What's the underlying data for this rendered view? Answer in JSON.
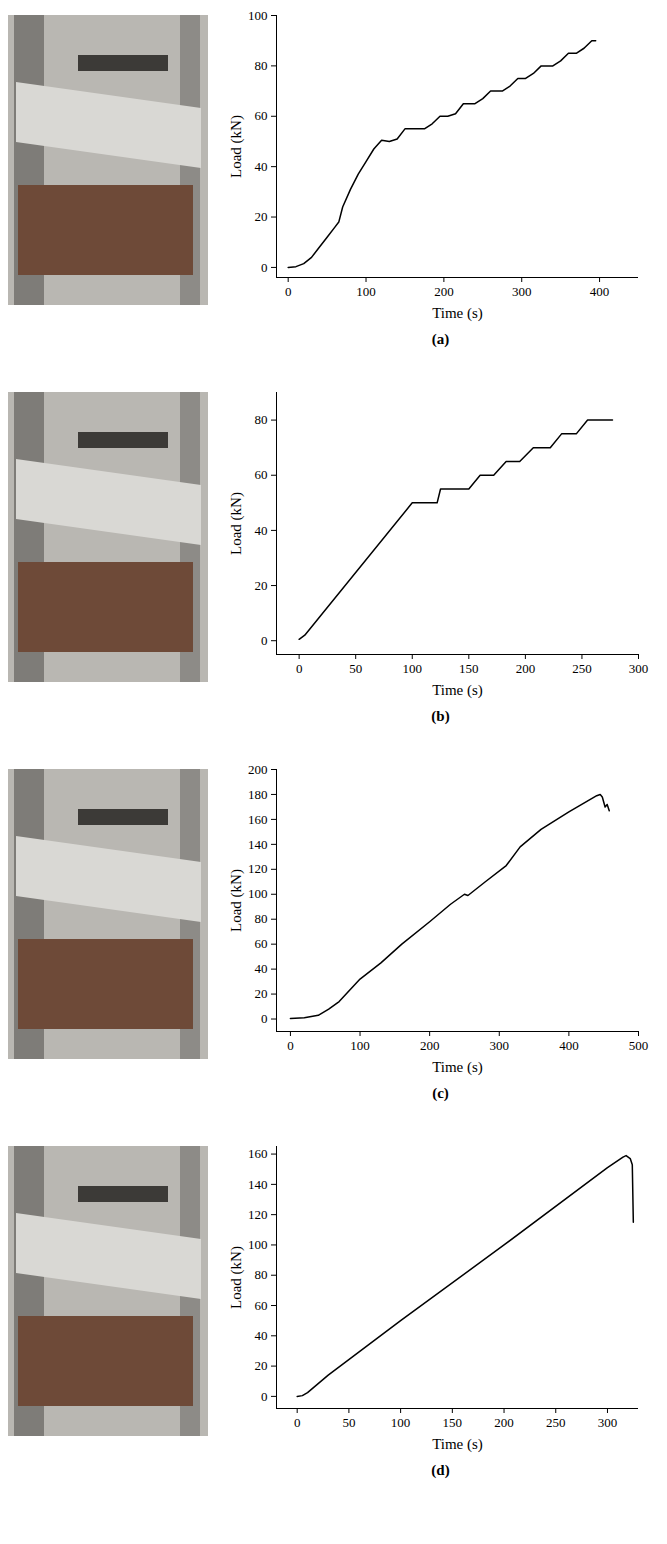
{
  "chart_data": [
    {
      "type": "line",
      "title": "(a)",
      "x_label": "Time (s)",
      "y_label": "Load (kN)",
      "color": "#000000",
      "xlim": [
        -15,
        450
      ],
      "xticks": [
        0,
        100,
        200,
        300,
        400
      ],
      "ylim": [
        -4,
        100
      ],
      "yticks": [
        0,
        20,
        40,
        60,
        80,
        100
      ],
      "x": [
        0,
        10,
        20,
        30,
        40,
        50,
        60,
        65,
        70,
        80,
        90,
        100,
        110,
        120,
        130,
        140,
        150,
        160,
        175,
        185,
        195,
        205,
        215,
        225,
        240,
        250,
        260,
        275,
        285,
        295,
        305,
        315,
        325,
        340,
        350,
        360,
        370,
        380,
        390,
        395
      ],
      "values": [
        0,
        0.3,
        1.5,
        4,
        8,
        12,
        16,
        18,
        24,
        31,
        37,
        42,
        47,
        50.5,
        50,
        51,
        55,
        55,
        55,
        57,
        60,
        60,
        61,
        65,
        65,
        67,
        70,
        70,
        72,
        75,
        75,
        77,
        80,
        80,
        82,
        85,
        85,
        87,
        90,
        90
      ]
    },
    {
      "type": "line",
      "title": "(b)",
      "x_label": "Time (s)",
      "y_label": "Load (kN)",
      "color": "#000000",
      "xlim": [
        -20,
        300
      ],
      "xticks": [
        0,
        50,
        100,
        150,
        200,
        250,
        300
      ],
      "ylim": [
        -5,
        90
      ],
      "yticks": [
        0,
        20,
        40,
        60,
        80
      ],
      "x": [
        0,
        5,
        100,
        122,
        125,
        150,
        160,
        172,
        183,
        195,
        207,
        222,
        232,
        245,
        255,
        277
      ],
      "values": [
        0.5,
        2,
        50,
        50,
        55,
        55,
        60,
        60,
        65,
        65,
        70,
        70,
        75,
        75,
        80,
        80
      ]
    },
    {
      "type": "line",
      "title": "(c)",
      "x_label": "Time (s)",
      "y_label": "Load (kN)",
      "color": "#000000",
      "xlim": [
        -20,
        500
      ],
      "xticks": [
        0,
        100,
        200,
        300,
        400,
        500
      ],
      "ylim": [
        -10,
        200
      ],
      "yticks": [
        0,
        20,
        40,
        60,
        80,
        100,
        120,
        140,
        160,
        180,
        200
      ],
      "x": [
        0,
        20,
        40,
        55,
        70,
        80,
        100,
        130,
        160,
        200,
        230,
        245,
        250,
        255,
        280,
        310,
        330,
        360,
        400,
        440,
        445,
        448,
        452,
        455,
        458
      ],
      "values": [
        0.5,
        1,
        3,
        8,
        14,
        20,
        32,
        45,
        60,
        78,
        92,
        98,
        100,
        99,
        110,
        123,
        138,
        152,
        166,
        179,
        180,
        178,
        170,
        172,
        167
      ]
    },
    {
      "type": "line",
      "title": "(d)",
      "x_label": "Time (s)",
      "y_label": "Load (kN)",
      "color": "#000000",
      "xlim": [
        -20,
        330
      ],
      "xticks": [
        0,
        50,
        100,
        150,
        200,
        250,
        300
      ],
      "ylim": [
        -8,
        165
      ],
      "yticks": [
        0,
        20,
        40,
        60,
        80,
        100,
        120,
        140,
        160
      ],
      "x": [
        0,
        5,
        10,
        30,
        100,
        200,
        300,
        315,
        318,
        322,
        324,
        325
      ],
      "values": [
        0,
        0.5,
        2.5,
        14,
        50,
        100,
        151,
        158,
        159,
        157,
        153,
        115
      ]
    }
  ]
}
